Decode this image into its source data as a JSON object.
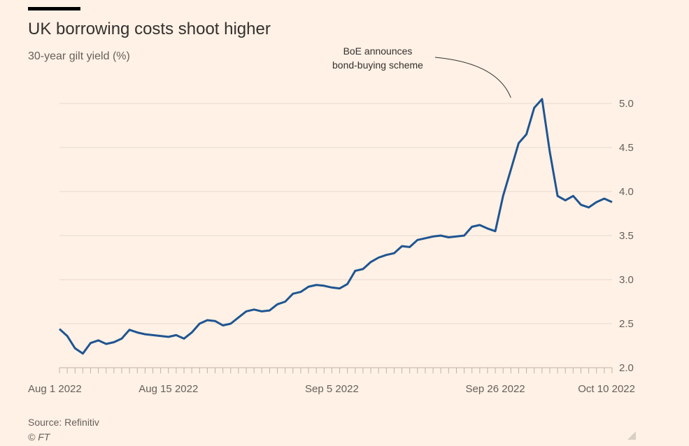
{
  "header": {
    "title": "UK borrowing costs shoot higher",
    "subtitle": "30-year gilt yield (%)"
  },
  "footer": {
    "source": "Source: Refinitiv",
    "copyright": "© FT"
  },
  "colors": {
    "background": "#fff1e5",
    "line": "#1f5591",
    "grid": "#e6d9ce",
    "text": "#33302e",
    "muted": "#66605c"
  },
  "chart_data": {
    "type": "line",
    "title": "UK borrowing costs shoot higher",
    "subtitle": "30-year gilt yield (%)",
    "xlabel": "",
    "ylabel": "",
    "xlim": [
      "2022-08-01",
      "2022-10-11"
    ],
    "ylim": [
      2.0,
      5.0
    ],
    "grid": true,
    "y_ticks": [
      2.0,
      2.5,
      3.0,
      3.5,
      4.0,
      4.5,
      5.0
    ],
    "y_tick_labels": [
      "2.0",
      "2.5",
      "3.0",
      "3.5",
      "4.0",
      "4.5",
      "5.0"
    ],
    "x_ticks": [
      {
        "date": "2022-08-01",
        "label": "Aug 1 2022"
      },
      {
        "date": "2022-08-15",
        "label": "Aug 15 2022"
      },
      {
        "date": "2022-09-05",
        "label": "Sep 5 2022"
      },
      {
        "date": "2022-09-26",
        "label": "Sep 26 2022"
      },
      {
        "date": "2022-10-10",
        "label": "Oct 10 2022"
      }
    ],
    "annotation": {
      "text_lines": [
        "BoE announces",
        "bond-buying scheme"
      ],
      "date": "2022-09-28",
      "value": 5.05
    },
    "series": [
      {
        "values": [
          [
            "2022-08-01",
            2.44
          ],
          [
            "2022-08-02",
            2.36
          ],
          [
            "2022-08-03",
            2.22
          ],
          [
            "2022-08-04",
            2.16
          ],
          [
            "2022-08-05",
            2.28
          ],
          [
            "2022-08-06",
            2.31
          ],
          [
            "2022-08-07",
            2.27
          ],
          [
            "2022-08-08",
            2.29
          ],
          [
            "2022-08-09",
            2.33
          ],
          [
            "2022-08-10",
            2.43
          ],
          [
            "2022-08-11",
            2.4
          ],
          [
            "2022-08-12",
            2.38
          ],
          [
            "2022-08-13",
            2.37
          ],
          [
            "2022-08-14",
            2.36
          ],
          [
            "2022-08-15",
            2.35
          ],
          [
            "2022-08-16",
            2.37
          ],
          [
            "2022-08-17",
            2.33
          ],
          [
            "2022-08-18",
            2.4
          ],
          [
            "2022-08-19",
            2.5
          ],
          [
            "2022-08-20",
            2.54
          ],
          [
            "2022-08-21",
            2.53
          ],
          [
            "2022-08-22",
            2.48
          ],
          [
            "2022-08-23",
            2.5
          ],
          [
            "2022-08-24",
            2.57
          ],
          [
            "2022-08-25",
            2.64
          ],
          [
            "2022-08-26",
            2.66
          ],
          [
            "2022-08-27",
            2.64
          ],
          [
            "2022-08-28",
            2.65
          ],
          [
            "2022-08-29",
            2.72
          ],
          [
            "2022-08-30",
            2.75
          ],
          [
            "2022-08-31",
            2.84
          ],
          [
            "2022-09-01",
            2.86
          ],
          [
            "2022-09-02",
            2.92
          ],
          [
            "2022-09-03",
            2.94
          ],
          [
            "2022-09-04",
            2.93
          ],
          [
            "2022-09-05",
            2.91
          ],
          [
            "2022-09-06",
            2.9
          ],
          [
            "2022-09-07",
            2.95
          ],
          [
            "2022-09-08",
            3.1
          ],
          [
            "2022-09-09",
            3.12
          ],
          [
            "2022-09-10",
            3.2
          ],
          [
            "2022-09-11",
            3.25
          ],
          [
            "2022-09-12",
            3.28
          ],
          [
            "2022-09-13",
            3.3
          ],
          [
            "2022-09-14",
            3.38
          ],
          [
            "2022-09-15",
            3.37
          ],
          [
            "2022-09-16",
            3.45
          ],
          [
            "2022-09-17",
            3.47
          ],
          [
            "2022-09-18",
            3.49
          ],
          [
            "2022-09-19",
            3.5
          ],
          [
            "2022-09-20",
            3.48
          ],
          [
            "2022-09-21",
            3.49
          ],
          [
            "2022-09-22",
            3.5
          ],
          [
            "2022-09-23",
            3.6
          ],
          [
            "2022-09-24",
            3.62
          ],
          [
            "2022-09-25",
            3.58
          ],
          [
            "2022-09-26",
            3.55
          ],
          [
            "2022-09-27",
            3.95
          ],
          [
            "2022-09-28",
            4.25
          ],
          [
            "2022-09-29",
            4.55
          ],
          [
            "2022-09-30",
            4.65
          ],
          [
            "2022-10-01",
            4.95
          ],
          [
            "2022-10-02",
            5.05
          ],
          [
            "2022-10-03",
            4.45
          ],
          [
            "2022-10-04",
            3.95
          ],
          [
            "2022-10-05",
            3.9
          ],
          [
            "2022-10-06",
            3.95
          ],
          [
            "2022-10-07",
            3.85
          ],
          [
            "2022-10-08",
            3.82
          ],
          [
            "2022-10-09",
            3.88
          ],
          [
            "2022-10-10",
            3.92
          ],
          [
            "2022-10-11",
            3.88
          ]
        ]
      }
    ]
  }
}
